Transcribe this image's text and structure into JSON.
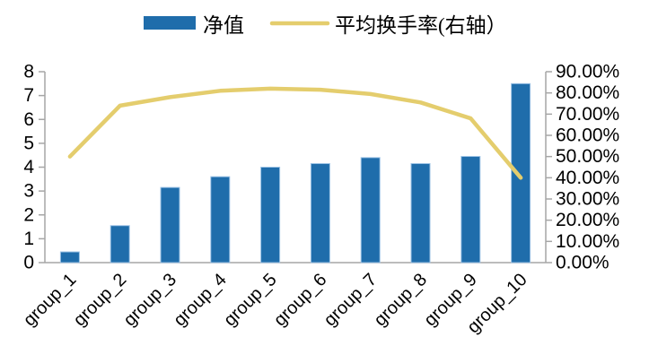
{
  "chart_data": {
    "type": "combo",
    "title": "",
    "categories": [
      "group_1",
      "group_2",
      "group_3",
      "group_4",
      "group_5",
      "group_6",
      "group_7",
      "group_8",
      "group_9",
      "group_10"
    ],
    "series": [
      {
        "name": "净值",
        "type": "bar",
        "axis": "left",
        "color": "#1F6DAB",
        "edge_color": "#9DC3E6",
        "values": [
          0.45,
          1.55,
          3.15,
          3.6,
          4.0,
          4.15,
          4.4,
          4.15,
          4.45,
          7.5
        ]
      },
      {
        "name": "平均换手率(右轴）",
        "type": "line",
        "axis": "right",
        "color": "#E4CD6D",
        "values_percent": [
          50,
          74,
          78,
          81,
          82,
          81.5,
          79.5,
          75.5,
          68,
          40
        ]
      }
    ],
    "y_left": {
      "min": 0,
      "max": 8,
      "tick_labels": [
        "0",
        "1",
        "2",
        "3",
        "4",
        "5",
        "6",
        "7",
        "8"
      ]
    },
    "y_right": {
      "min_percent": 0,
      "max_percent": 90,
      "tick_labels": [
        "0.00%",
        "10.00%",
        "20.00%",
        "30.00%",
        "40.00%",
        "50.00%",
        "60.00%",
        "70.00%",
        "80.00%",
        "90.00%"
      ]
    },
    "grid": false,
    "legend_position": "top",
    "axis_color": "#A6A6A6",
    "text_color": "#000000"
  }
}
